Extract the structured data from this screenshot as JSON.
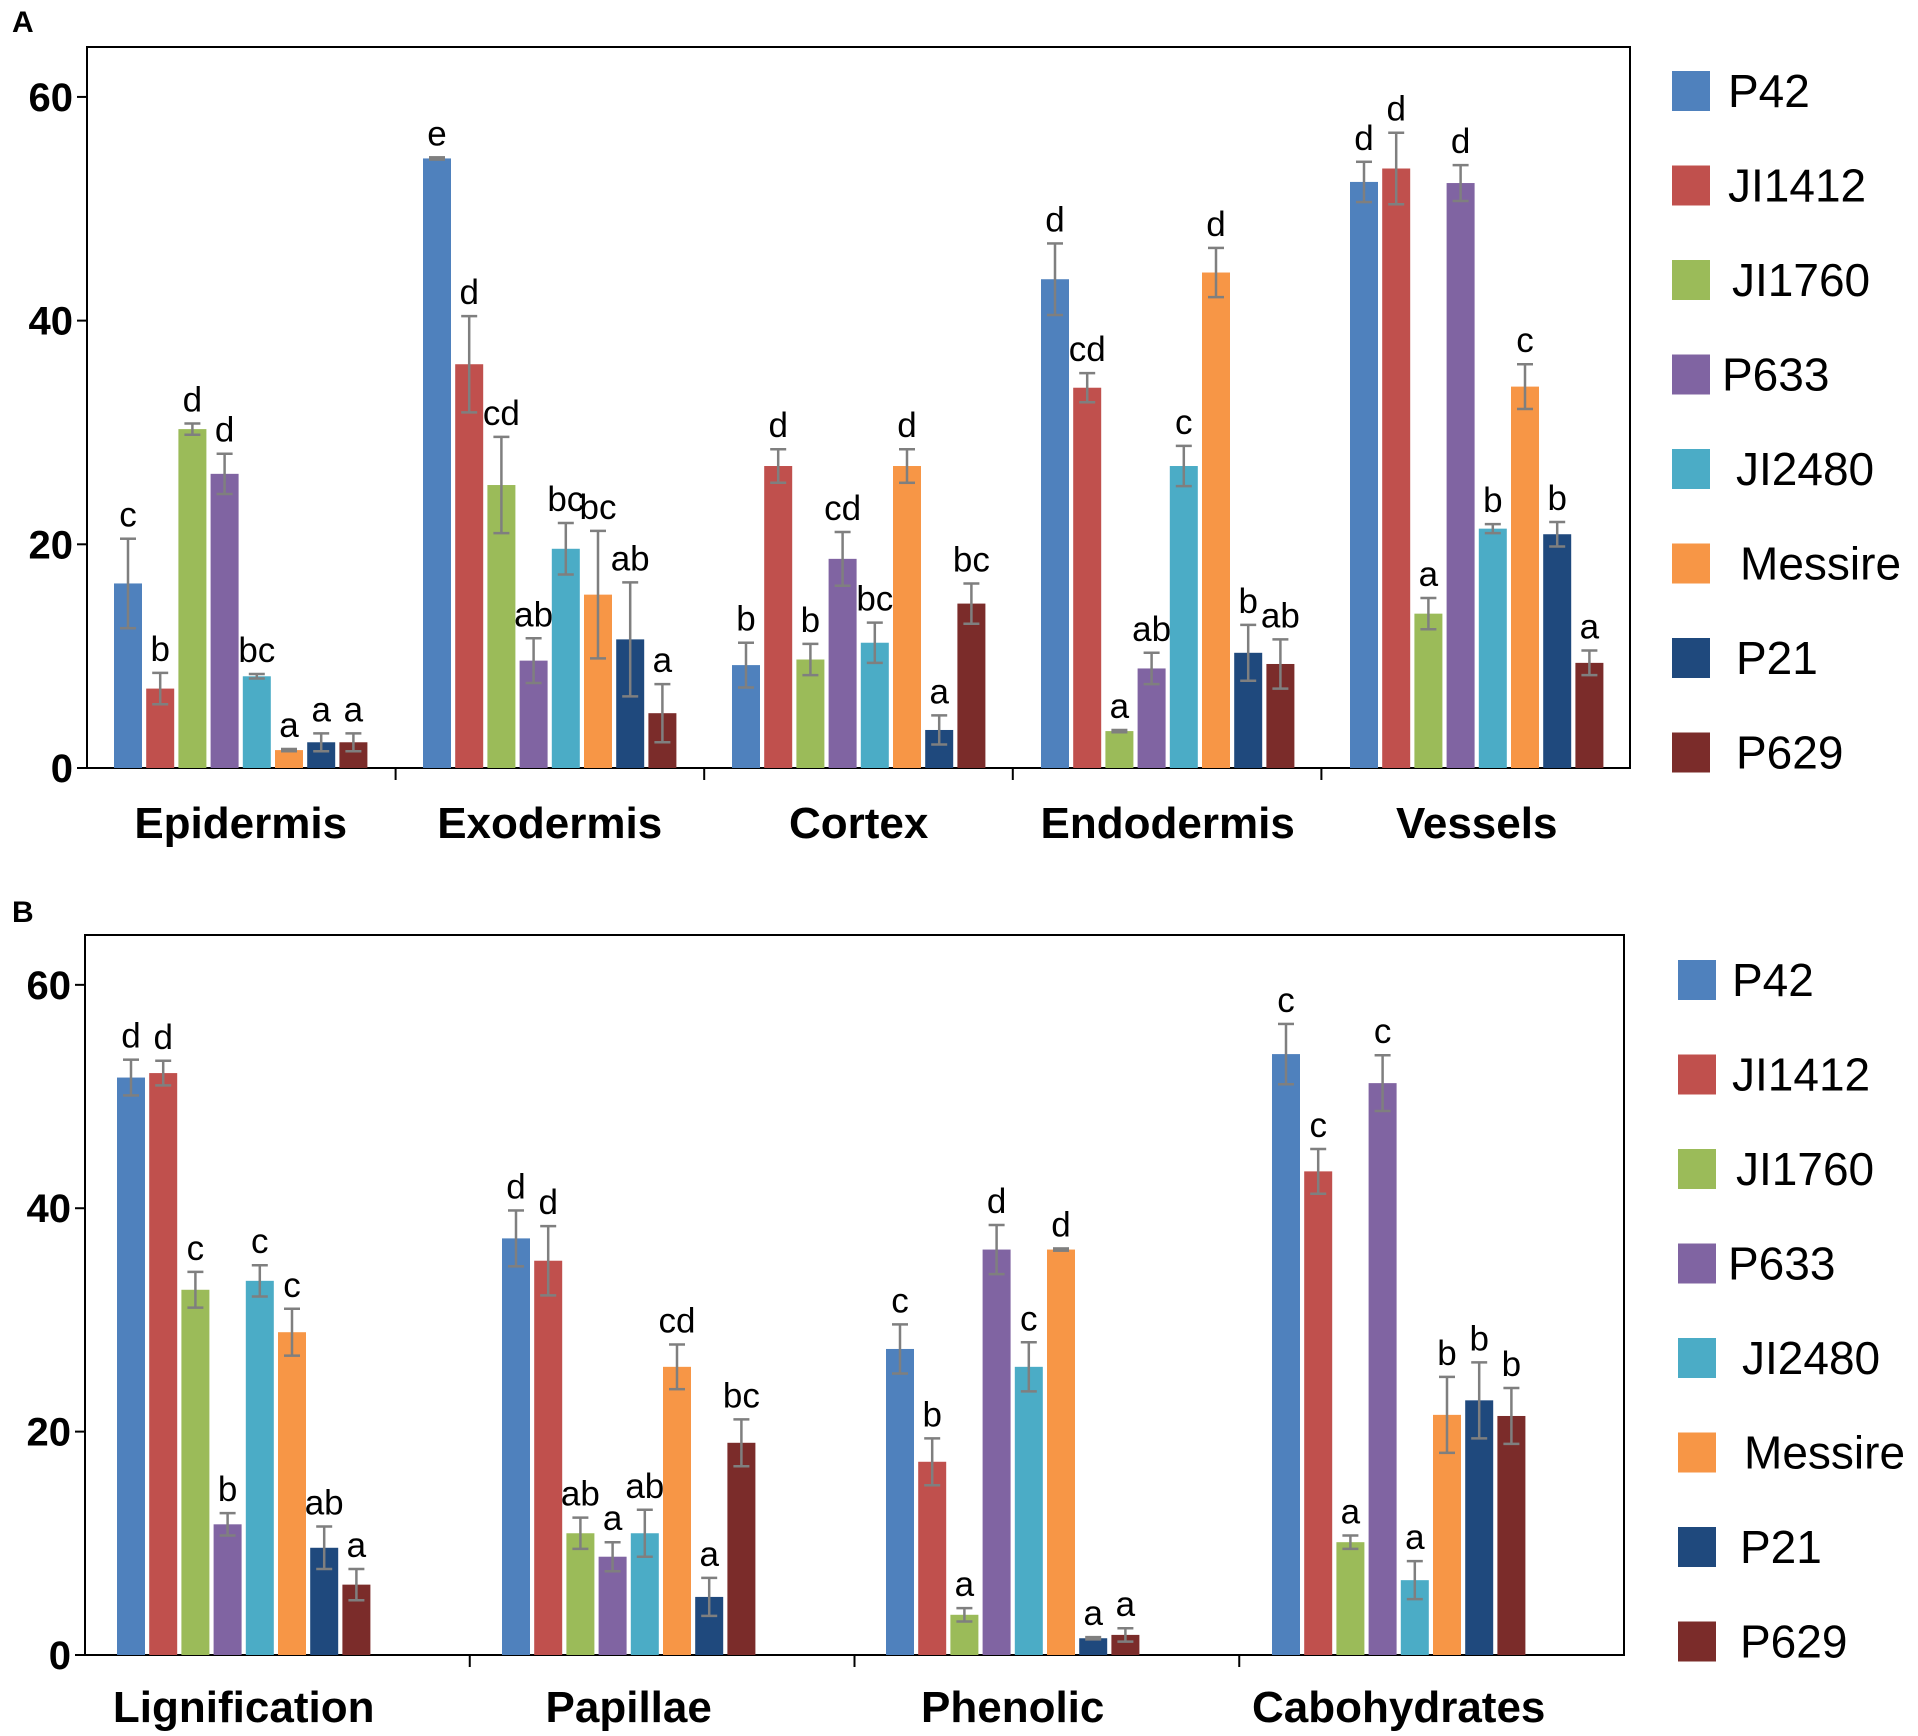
{
  "colors": {
    "P42": "#4f81bd",
    "JI1412": "#c0504d",
    "JI1760": "#9bbb59",
    "P633": "#8064a2",
    "JI2480": "#4bacc6",
    "Messire": "#f79646",
    "P21": "#1f497d",
    "P629": "#7b2c2a",
    "error_bar": "#7f7f7f"
  },
  "chart_data": [
    {
      "type": "bar",
      "panel_label": "A",
      "ylim": [
        0,
        65
      ],
      "yticks": [
        "0",
        "20",
        "40",
        "60"
      ],
      "legend": [
        "P42",
        "JI1412",
        "JI1760",
        "P633",
        "JI2480",
        "Messire",
        "P21",
        "P629"
      ],
      "legend_position": "right",
      "categories": [
        "Epidermis",
        "Exodermis",
        "Cortex",
        "Endodermis",
        "Vessels"
      ],
      "series": [
        {
          "name": "P42",
          "values": [
            16.5,
            54.5,
            9.2,
            43.7,
            52.4
          ],
          "errors": [
            4.0,
            0.1,
            2.0,
            3.2,
            1.8
          ],
          "letters": [
            "c",
            "e",
            "b",
            "d",
            "d"
          ]
        },
        {
          "name": "JI1412",
          "values": [
            7.1,
            36.1,
            27.0,
            34.0,
            53.6
          ],
          "errors": [
            1.4,
            4.3,
            1.5,
            1.3,
            3.2
          ],
          "letters": [
            "b",
            "d",
            "d",
            "cd",
            "d"
          ]
        },
        {
          "name": "JI1760",
          "values": [
            30.3,
            25.3,
            9.7,
            3.3,
            13.8
          ],
          "errors": [
            0.5,
            4.3,
            1.4,
            0.1,
            1.4
          ],
          "letters": [
            "d",
            "cd",
            "b",
            "a",
            "a"
          ]
        },
        {
          "name": "P633",
          "values": [
            26.3,
            9.6,
            18.7,
            8.9,
            52.3
          ],
          "errors": [
            1.8,
            2.0,
            2.4,
            1.4,
            1.6
          ],
          "letters": [
            "d",
            "ab",
            "cd",
            "ab",
            "d"
          ]
        },
        {
          "name": "JI2480",
          "values": [
            8.2,
            19.6,
            11.2,
            27.0,
            21.4
          ],
          "errors": [
            0.2,
            2.3,
            1.8,
            1.8,
            0.4
          ],
          "letters": [
            "bc",
            "bc",
            "bc",
            "c",
            "b"
          ]
        },
        {
          "name": "Messire",
          "values": [
            1.6,
            15.5,
            27.0,
            44.3,
            34.1
          ],
          "errors": [
            0.1,
            5.7,
            1.5,
            2.2,
            2.0
          ],
          "letters": [
            "a",
            "bc",
            "d",
            "d",
            "c"
          ]
        },
        {
          "name": "P21",
          "values": [
            2.3,
            11.5,
            3.4,
            10.3,
            20.9
          ],
          "errors": [
            0.8,
            5.1,
            1.3,
            2.5,
            1.1
          ],
          "letters": [
            "a",
            "ab",
            "a",
            "b",
            "b"
          ]
        },
        {
          "name": "P629",
          "values": [
            2.3,
            4.9,
            14.7,
            9.3,
            9.4
          ],
          "errors": [
            0.8,
            2.6,
            1.8,
            2.2,
            1.1
          ],
          "letters": [
            "a",
            "a",
            "bc",
            "ab",
            "a"
          ]
        }
      ]
    },
    {
      "type": "bar",
      "panel_label": "B",
      "ylim": [
        0,
        65
      ],
      "yticks": [
        "0",
        "20",
        "40",
        "60"
      ],
      "legend": [
        "P42",
        "JI1412",
        "JI1760",
        "P633",
        "JI2480",
        "Messire",
        "P21",
        "P629"
      ],
      "legend_position": "right",
      "categories": [
        "Lignification",
        "Papillae",
        "Phenolic",
        "Cabohydrates"
      ],
      "series": [
        {
          "name": "P42",
          "values": [
            51.7,
            37.3,
            27.4,
            53.8
          ],
          "errors": [
            1.6,
            2.5,
            2.2,
            2.7
          ],
          "letters": [
            "d",
            "d",
            "c",
            "c"
          ]
        },
        {
          "name": "JI1412",
          "values": [
            52.1,
            35.3,
            17.3,
            43.3
          ],
          "errors": [
            1.1,
            3.1,
            2.1,
            2.0
          ],
          "letters": [
            "d",
            "d",
            "b",
            "c"
          ]
        },
        {
          "name": "JI1760",
          "values": [
            32.7,
            10.9,
            3.6,
            10.1
          ],
          "errors": [
            1.6,
            1.4,
            0.6,
            0.6
          ],
          "letters": [
            "c",
            "ab",
            "a",
            "a"
          ]
        },
        {
          "name": "P633",
          "values": [
            11.7,
            8.8,
            36.3,
            51.2
          ],
          "errors": [
            1.0,
            1.3,
            2.2,
            2.5
          ],
          "letters": [
            "b",
            "a",
            "d",
            "c"
          ]
        },
        {
          "name": "JI2480",
          "values": [
            33.5,
            10.9,
            25.8,
            6.7
          ],
          "errors": [
            1.4,
            2.1,
            2.2,
            1.7
          ],
          "letters": [
            "c",
            "ab",
            "c",
            "a"
          ]
        },
        {
          "name": "Messire",
          "values": [
            28.9,
            25.8,
            36.3,
            21.5
          ],
          "errors": [
            2.1,
            2.0,
            0.1,
            3.4
          ],
          "letters": [
            "c",
            "cd",
            "d",
            "b"
          ]
        },
        {
          "name": "P21",
          "values": [
            9.6,
            5.2,
            1.5,
            22.8
          ],
          "errors": [
            1.9,
            1.7,
            0.1,
            3.4
          ],
          "letters": [
            "ab",
            "a",
            "a",
            "b"
          ]
        },
        {
          "name": "P629",
          "values": [
            6.3,
            19.0,
            1.8,
            21.4
          ],
          "errors": [
            1.4,
            2.1,
            0.6,
            2.5
          ],
          "letters": [
            "a",
            "bc",
            "a",
            "b"
          ]
        }
      ]
    }
  ]
}
